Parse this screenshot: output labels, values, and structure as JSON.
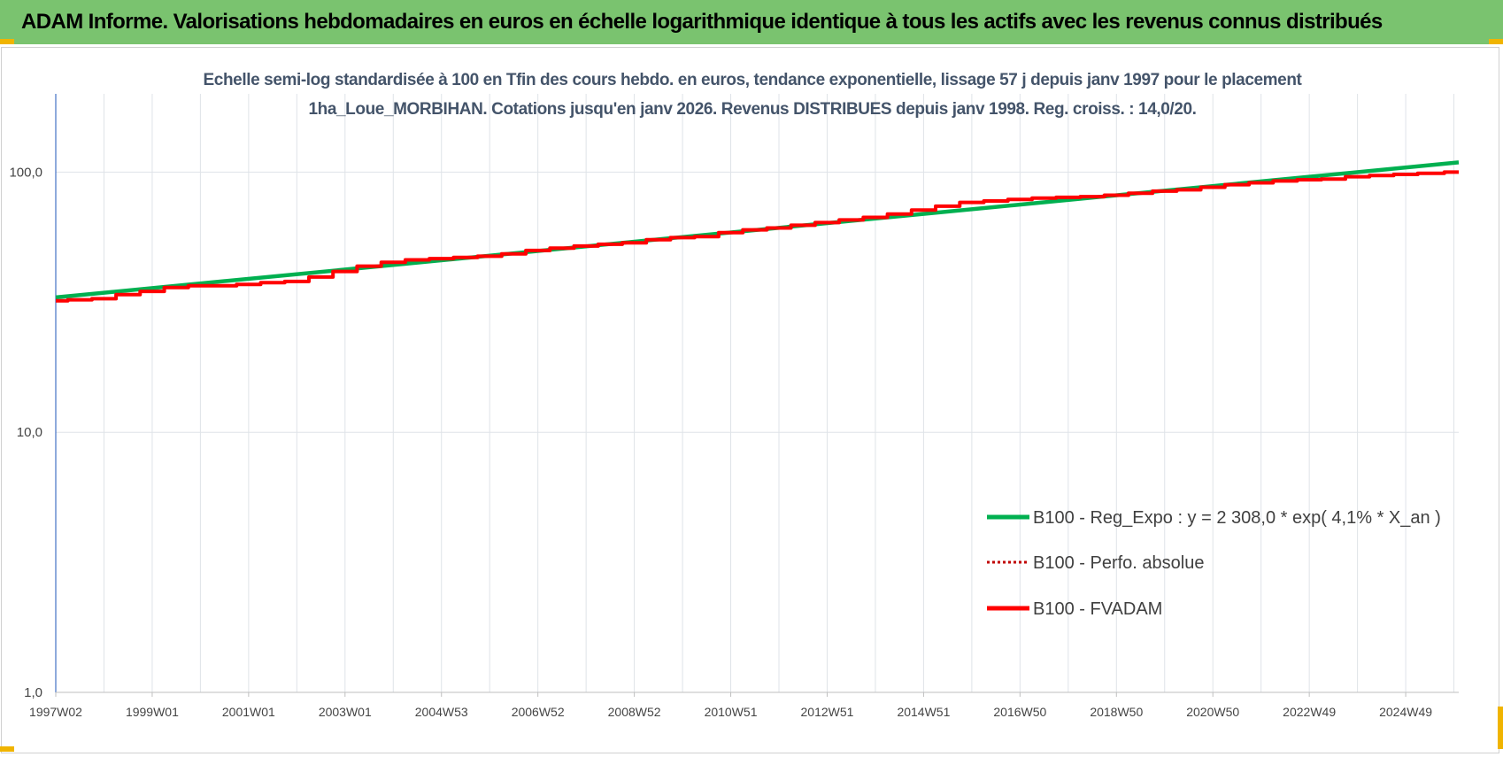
{
  "banner": {
    "title": "ADAM Informe. Valorisations hebdomadaires en euros en échelle logarithmique identique à tous les actifs avec les revenus connus distribués",
    "color": "#7ac36f"
  },
  "chart_data": {
    "type": "line",
    "title": "Echelle semi-log standardisée à 100 en Tfin des cours hebdo. en euros, tendance exponentielle, lissage 57 j depuis janv 1997 pour le placement 1ha_Loue_MORBIHAN. Cotations jusqu'en janv 2026. Revenus DISTRIBUES depuis janv 1998. Reg. croiss. : 14,0/20.",
    "y_scale": "log",
    "ylim": [
      1,
      200
    ],
    "y_ticks": [
      {
        "value": 1,
        "label": "1,0"
      },
      {
        "value": 10,
        "label": "10,0"
      },
      {
        "value": 100,
        "label": "100,0"
      }
    ],
    "x_range": [
      1997.0,
      2026.1
    ],
    "x_ticks": [
      {
        "value": 1997.0,
        "label": "1997W02"
      },
      {
        "value": 1999.0,
        "label": "1999W01"
      },
      {
        "value": 2001.0,
        "label": "2001W01"
      },
      {
        "value": 2003.0,
        "label": "2003W01"
      },
      {
        "value": 2005.0,
        "label": "2004W53"
      },
      {
        "value": 2007.0,
        "label": "2006W52"
      },
      {
        "value": 2009.0,
        "label": "2008W52"
      },
      {
        "value": 2011.0,
        "label": "2010W51"
      },
      {
        "value": 2013.0,
        "label": "2012W51"
      },
      {
        "value": 2015.0,
        "label": "2014W51"
      },
      {
        "value": 2017.0,
        "label": "2016W50"
      },
      {
        "value": 2019.0,
        "label": "2018W50"
      },
      {
        "value": 2021.0,
        "label": "2020W50"
      },
      {
        "value": 2023.0,
        "label": "2022W49"
      },
      {
        "value": 2025.0,
        "label": "2024W49"
      }
    ],
    "grid": true,
    "legend_position": "bottom-right",
    "series": [
      {
        "name": "B100 - Reg_Expo : y = 2 308,0 * exp( 4,1% *  X_an )",
        "color": "#00b050",
        "style": "solid",
        "x": [
          1997.0,
          2026.1
        ],
        "y": [
          33.0,
          109.0
        ]
      },
      {
        "name": "B100 - Perfo. absolue",
        "color": "#c00000",
        "style": "dotted",
        "x": [],
        "y": []
      },
      {
        "name": "B100 - FVADAM",
        "color": "#ff0000",
        "style": "solid",
        "x": [
          1997.0,
          1997.5,
          1998.0,
          1998.5,
          1999.0,
          1999.5,
          2000.0,
          2000.5,
          2001.0,
          2001.5,
          2002.0,
          2002.5,
          2003.0,
          2003.5,
          2004.0,
          2004.5,
          2005.0,
          2005.5,
          2006.0,
          2006.5,
          2007.0,
          2007.5,
          2008.0,
          2008.5,
          2009.0,
          2009.5,
          2010.0,
          2010.5,
          2011.0,
          2011.5,
          2012.0,
          2012.5,
          2013.0,
          2013.5,
          2014.0,
          2014.5,
          2015.0,
          2015.5,
          2016.0,
          2016.5,
          2017.0,
          2017.5,
          2018.0,
          2018.5,
          2019.0,
          2019.5,
          2020.0,
          2020.5,
          2021.0,
          2021.5,
          2022.0,
          2022.5,
          2023.0,
          2023.5,
          2024.0,
          2024.5,
          2025.0,
          2025.5,
          2026.1
        ],
        "y": [
          32.0,
          32.3,
          32.6,
          33.8,
          34.8,
          36.0,
          36.6,
          36.6,
          37.0,
          37.6,
          38.0,
          39.5,
          41.5,
          43.5,
          45.0,
          46.0,
          46.5,
          47.0,
          47.5,
          48.5,
          50.0,
          51.0,
          52.0,
          52.8,
          53.5,
          55.0,
          56.0,
          56.5,
          58.5,
          60.0,
          61.0,
          62.5,
          64.0,
          65.5,
          67.0,
          69.0,
          71.5,
          74.0,
          76.5,
          77.5,
          78.5,
          79.5,
          80.0,
          80.5,
          81.5,
          83.0,
          84.5,
          85.5,
          87.5,
          89.5,
          91.0,
          92.5,
          93.5,
          94.0,
          96.0,
          97.0,
          98.0,
          99.0,
          100.0
        ]
      }
    ]
  }
}
